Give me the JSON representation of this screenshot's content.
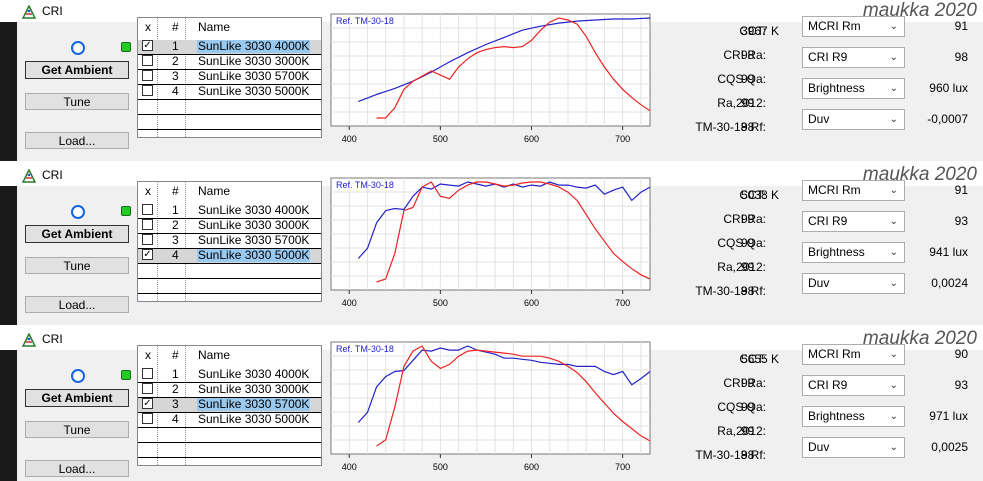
{
  "panels": [
    {
      "title": "CRI",
      "brand": "maukka 2020",
      "buttons": {
        "get_ambient": "Get Ambient",
        "tune": "Tune",
        "load": "Load..."
      },
      "list": {
        "headers": {
          "x": "x",
          "num": "#",
          "name": "Name"
        },
        "rows": [
          {
            "checked": true,
            "num": "1",
            "name": "SunLike 3030 4000K",
            "selected": true
          },
          {
            "checked": false,
            "num": "2",
            "name": "SunLike 3030 3000K",
            "selected": false
          },
          {
            "checked": false,
            "num": "3",
            "name": "SunLike 3030 5700K",
            "selected": false
          },
          {
            "checked": false,
            "num": "4",
            "name": "SunLike 3030 5000K",
            "selected": false
          }
        ]
      },
      "chart": {
        "legend": "Ref. TM-30-18",
        "ticks": [
          "400",
          "500",
          "600",
          "700"
        ]
      },
      "stats": [
        {
          "label": "CCT:",
          "value": "3967 K"
        },
        {
          "label": "CRI Ra:",
          "value": "98"
        },
        {
          "label": "CQS Qa:",
          "value": "99"
        },
        {
          "label": "Ra,2012:",
          "value": "99"
        },
        {
          "label": "TM-30-18 Rf:",
          "value": "98"
        }
      ],
      "dropdowns": [
        {
          "label": "MCRI Rm",
          "value": "91"
        },
        {
          "label": "CRI R9",
          "value": "98"
        },
        {
          "label": "Brightness",
          "value": "960 lux"
        },
        {
          "label": "Duv",
          "value": "-0,0007"
        }
      ]
    },
    {
      "title": "CRI",
      "brand": "maukka 2020",
      "buttons": {
        "get_ambient": "Get Ambient",
        "tune": "Tune",
        "load": "Load..."
      },
      "list": {
        "headers": {
          "x": "x",
          "num": "#",
          "name": "Name"
        },
        "rows": [
          {
            "checked": false,
            "num": "1",
            "name": "SunLike 3030 4000K",
            "selected": false
          },
          {
            "checked": false,
            "num": "2",
            "name": "SunLike 3030 3000K",
            "selected": false
          },
          {
            "checked": false,
            "num": "3",
            "name": "SunLike 3030 5700K",
            "selected": false
          },
          {
            "checked": true,
            "num": "4",
            "name": "SunLike 3030 5000K",
            "selected": true
          }
        ]
      },
      "chart": {
        "legend": "Ref. TM-30-18",
        "ticks": [
          "400",
          "500",
          "600",
          "700"
        ]
      },
      "stats": [
        {
          "label": "CCT:",
          "value": "5038 K"
        },
        {
          "label": "CRI Ra:",
          "value": "99"
        },
        {
          "label": "CQS Qa:",
          "value": "99"
        },
        {
          "label": "Ra,2012:",
          "value": "99"
        },
        {
          "label": "TM-30-18 Rf:",
          "value": "98"
        }
      ],
      "dropdowns": [
        {
          "label": "MCRI Rm",
          "value": "91"
        },
        {
          "label": "CRI R9",
          "value": "93"
        },
        {
          "label": "Brightness",
          "value": "941 lux"
        },
        {
          "label": "Duv",
          "value": "0,0024"
        }
      ]
    },
    {
      "title": "CRI",
      "brand": "maukka 2020",
      "buttons": {
        "get_ambient": "Get Ambient",
        "tune": "Tune",
        "load": "Load..."
      },
      "list": {
        "headers": {
          "x": "x",
          "num": "#",
          "name": "Name"
        },
        "rows": [
          {
            "checked": false,
            "num": "1",
            "name": "SunLike 3030 4000K",
            "selected": false
          },
          {
            "checked": false,
            "num": "2",
            "name": "SunLike 3030 3000K",
            "selected": false
          },
          {
            "checked": true,
            "num": "3",
            "name": "SunLike 3030 5700K",
            "selected": true
          },
          {
            "checked": false,
            "num": "4",
            "name": "SunLike 3030 5000K",
            "selected": false
          }
        ]
      },
      "chart": {
        "legend": "Ref. TM-30-18",
        "ticks": [
          "400",
          "500",
          "600",
          "700"
        ]
      },
      "stats": [
        {
          "label": "CCT:",
          "value": "5655 K"
        },
        {
          "label": "CRI Ra:",
          "value": "99"
        },
        {
          "label": "CQS Qa:",
          "value": "99"
        },
        {
          "label": "Ra,2012:",
          "value": "99"
        },
        {
          "label": "TM-30-18 Rf:",
          "value": "98"
        }
      ],
      "dropdowns": [
        {
          "label": "MCRI Rm",
          "value": "90"
        },
        {
          "label": "CRI R9",
          "value": "93"
        },
        {
          "label": "Brightness",
          "value": "971 lux"
        },
        {
          "label": "Duv",
          "value": "0,0025"
        }
      ]
    }
  ],
  "colors": {
    "reference": "#2222cc",
    "measured": "#ee2222",
    "led_blue": "#1565e0",
    "led_green": "#22cc22"
  },
  "icons": {
    "app": "cri-app-icon",
    "dropdown": "chevron-down-icon"
  },
  "chart_data": [
    {
      "type": "line",
      "xlim": [
        380,
        730
      ],
      "ylim": [
        0,
        1
      ],
      "xticks": [
        400,
        500,
        600,
        700
      ],
      "series": [
        {
          "name": "Ref. TM-30-18",
          "x": [
            410,
            430,
            450,
            470,
            490,
            510,
            530,
            550,
            570,
            590,
            610,
            630,
            650,
            670,
            690,
            710,
            730
          ],
          "y": [
            0.18,
            0.25,
            0.31,
            0.38,
            0.47,
            0.57,
            0.66,
            0.74,
            0.81,
            0.88,
            0.92,
            0.95,
            0.97,
            0.98,
            0.99,
            0.99,
            1.0
          ]
        },
        {
          "x": [
            430,
            440,
            450,
            460,
            470,
            480,
            490,
            500,
            510,
            520,
            530,
            540,
            550,
            560,
            570,
            580,
            590,
            600,
            610,
            620,
            630,
            640,
            650,
            660,
            670,
            680,
            690,
            700,
            710,
            720,
            730
          ],
          "y": [
            0.02,
            0.02,
            0.12,
            0.3,
            0.38,
            0.43,
            0.48,
            0.44,
            0.4,
            0.52,
            0.6,
            0.66,
            0.69,
            0.71,
            0.72,
            0.71,
            0.72,
            0.78,
            0.88,
            0.96,
            1.0,
            0.98,
            0.94,
            0.82,
            0.66,
            0.52,
            0.4,
            0.3,
            0.22,
            0.15,
            0.09
          ]
        }
      ]
    },
    {
      "type": "line",
      "xlim": [
        380,
        730
      ],
      "ylim": [
        0,
        1
      ],
      "xticks": [
        400,
        500,
        600,
        700
      ],
      "series": [
        {
          "name": "Ref. TM-30-18",
          "x": [
            410,
            420,
            430,
            440,
            450,
            460,
            470,
            480,
            490,
            500,
            510,
            520,
            530,
            540,
            550,
            560,
            570,
            580,
            590,
            600,
            610,
            620,
            630,
            640,
            650,
            660,
            670,
            680,
            690,
            700,
            710,
            720,
            730
          ],
          "y": [
            0.25,
            0.35,
            0.6,
            0.72,
            0.74,
            0.73,
            0.86,
            0.95,
            0.93,
            0.98,
            0.97,
            0.96,
            1.0,
            0.98,
            0.96,
            0.98,
            0.95,
            0.98,
            0.95,
            0.97,
            0.96,
            1.0,
            0.97,
            0.97,
            0.95,
            0.94,
            0.97,
            0.88,
            0.92,
            0.95,
            0.82,
            0.9,
            0.95
          ]
        },
        {
          "x": [
            430,
            440,
            450,
            460,
            470,
            480,
            490,
            500,
            510,
            520,
            530,
            540,
            550,
            560,
            570,
            580,
            590,
            600,
            610,
            620,
            630,
            640,
            650,
            660,
            670,
            680,
            690,
            700,
            710,
            720,
            730
          ],
          "y": [
            0.02,
            0.05,
            0.3,
            0.72,
            0.75,
            0.95,
            1.0,
            0.86,
            0.84,
            0.92,
            0.97,
            1.0,
            1.0,
            0.98,
            0.96,
            0.97,
            0.99,
            1.0,
            1.0,
            0.98,
            0.95,
            0.9,
            0.82,
            0.68,
            0.54,
            0.42,
            0.3,
            0.22,
            0.15,
            0.09,
            0.05
          ]
        }
      ]
    },
    {
      "type": "line",
      "xlim": [
        380,
        730
      ],
      "ylim": [
        0,
        1
      ],
      "xticks": [
        400,
        500,
        600,
        700
      ],
      "series": [
        {
          "name": "Ref. TM-30-18",
          "x": [
            410,
            420,
            430,
            440,
            450,
            460,
            470,
            480,
            490,
            500,
            510,
            520,
            530,
            540,
            550,
            560,
            570,
            580,
            590,
            600,
            610,
            620,
            630,
            640,
            650,
            660,
            670,
            680,
            690,
            700,
            710,
            720,
            730
          ],
          "y": [
            0.25,
            0.35,
            0.6,
            0.7,
            0.75,
            0.76,
            0.86,
            0.96,
            0.95,
            0.98,
            0.96,
            0.96,
            1.0,
            0.96,
            0.94,
            0.92,
            0.88,
            0.88,
            0.87,
            0.86,
            0.84,
            0.83,
            0.82,
            0.82,
            0.8,
            0.8,
            0.8,
            0.75,
            0.72,
            0.75,
            0.62,
            0.68,
            0.75
          ]
        },
        {
          "x": [
            430,
            440,
            450,
            460,
            470,
            480,
            490,
            500,
            510,
            520,
            530,
            540,
            550,
            560,
            570,
            580,
            590,
            600,
            610,
            620,
            630,
            640,
            650,
            660,
            670,
            680,
            690,
            700,
            710,
            720,
            730
          ],
          "y": [
            0.02,
            0.08,
            0.4,
            0.8,
            0.95,
            1.0,
            0.85,
            0.78,
            0.82,
            0.9,
            0.95,
            0.96,
            0.95,
            0.94,
            0.93,
            0.92,
            0.9,
            0.9,
            0.9,
            0.88,
            0.85,
            0.8,
            0.74,
            0.65,
            0.54,
            0.44,
            0.34,
            0.26,
            0.19,
            0.12,
            0.07
          ]
        }
      ]
    }
  ]
}
